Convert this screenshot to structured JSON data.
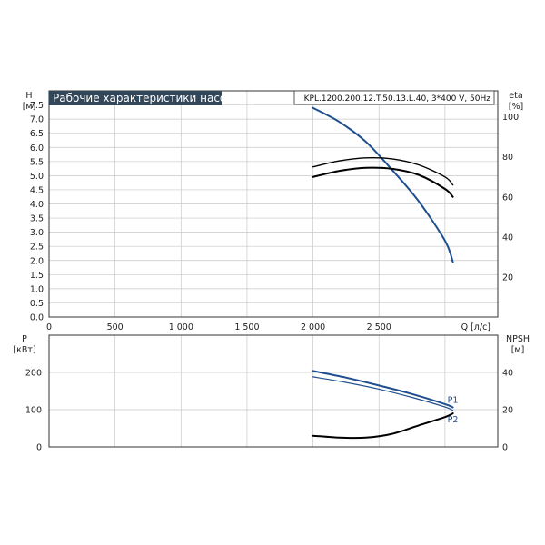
{
  "chart_data": [
    {
      "type": "line",
      "title": "Рабочие характеристики насоса",
      "model": "KPL.1200.200.12.T.50.13.L.40, 3*400 V, 50Hz",
      "y_left_label": "H",
      "y_left_unit": "[м]",
      "y_right_label": "eta",
      "y_right_unit": "[%]",
      "x_label": "Q [л/с]",
      "xlim": [
        0,
        3400
      ],
      "ylim_left": [
        0,
        8
      ],
      "ylim_right_eta": [
        0,
        113
      ],
      "x_ticks": [
        0,
        500,
        1000,
        1500,
        2000,
        2500
      ],
      "x_tick_labels": [
        "0",
        "500",
        "1 000",
        "1 500",
        "2 000",
        "2 500"
      ],
      "y_left_ticks": [
        0.0,
        0.5,
        1.0,
        1.5,
        2.0,
        2.5,
        3.0,
        3.5,
        4.0,
        4.5,
        5.0,
        5.5,
        6.0,
        6.5,
        7.0,
        7.5
      ],
      "y_left_tick_labels": [
        "0.0",
        "0.5",
        "1.0",
        "1.5",
        "2.0",
        "2.5",
        "3.0",
        "3.5",
        "4.0",
        "4.5",
        "5.0",
        "5.5",
        "6.0",
        "6.5",
        "7.0",
        "7.5"
      ],
      "y_right_ticks": [
        20,
        40,
        60,
        80,
        100
      ],
      "y_right_tick_labels": [
        "20",
        "40",
        "60",
        "80",
        "100"
      ],
      "grid": true,
      "series": [
        {
          "axis": "left",
          "color": "#1f4f8f",
          "width": 2,
          "x": [
            2000,
            2200,
            2400,
            2600,
            2800,
            3000,
            3060
          ],
          "y": [
            7.4,
            6.9,
            6.2,
            5.2,
            4.1,
            2.7,
            1.95
          ]
        },
        {
          "axis": "right",
          "color": "#000000",
          "width": 1.4,
          "x": [
            2000,
            2200,
            2400,
            2600,
            2800,
            3000,
            3060
          ],
          "y": [
            75,
            78,
            79.5,
            79,
            76,
            70,
            66
          ]
        },
        {
          "axis": "right",
          "color": "#000000",
          "width": 2,
          "x": [
            2000,
            2200,
            2400,
            2600,
            2800,
            3000,
            3060
          ],
          "y": [
            70,
            73,
            74.5,
            74,
            71,
            64,
            60
          ]
        }
      ]
    },
    {
      "type": "line",
      "y_left_label": "P",
      "y_left_unit": "[кВт]",
      "y_right_label": "NPSH",
      "y_right_unit": "[м]",
      "xlim": [
        0,
        3400
      ],
      "ylim_left": [
        0,
        300
      ],
      "ylim_right_npsh": [
        0,
        60
      ],
      "x_ticks": [
        0,
        500,
        1000,
        1500,
        2000,
        2500
      ],
      "y_left_ticks": [
        0,
        100,
        200
      ],
      "y_left_tick_labels": [
        "0",
        "100",
        "200"
      ],
      "y_right_ticks": [
        0,
        20,
        40
      ],
      "y_right_tick_labels": [
        "0",
        "20",
        "40"
      ],
      "grid": true,
      "series": [
        {
          "name": "P1",
          "axis": "left",
          "color": "#1f4f8f",
          "width": 2,
          "x": [
            2000,
            2250,
            2500,
            2750,
            3000,
            3060
          ],
          "y": [
            204,
            186,
            165,
            142,
            115,
            106
          ]
        },
        {
          "name": "P2",
          "axis": "left",
          "color": "#1f4f8f",
          "width": 1.2,
          "x": [
            2000,
            2250,
            2500,
            2750,
            3000,
            3060
          ],
          "y": [
            188,
            173,
            155,
            133,
            107,
            98
          ]
        },
        {
          "axis": "right",
          "color": "#000000",
          "width": 2,
          "x": [
            2000,
            2200,
            2400,
            2600,
            2800,
            3000,
            3060
          ],
          "y": [
            6,
            5,
            5,
            7,
            11.5,
            16,
            18
          ]
        }
      ]
    }
  ]
}
